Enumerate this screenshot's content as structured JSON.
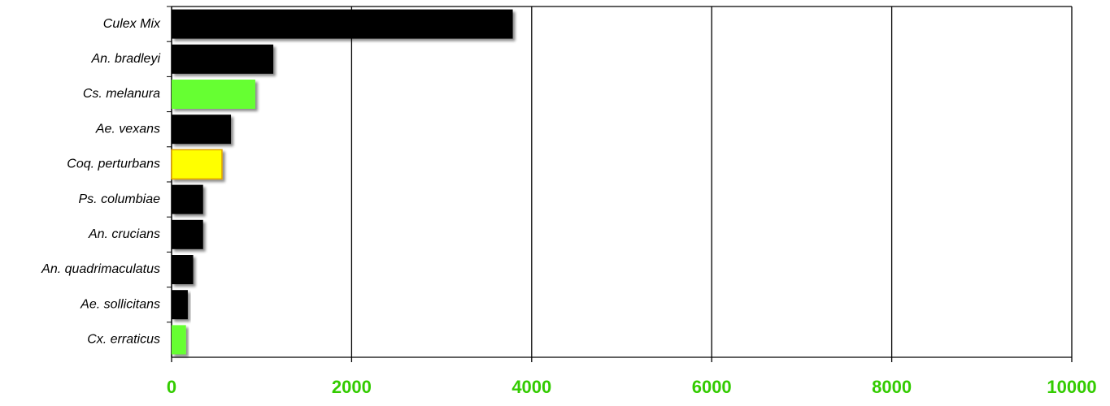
{
  "chart_data": {
    "type": "hbar",
    "categories": [
      "Culex Mix",
      "An. bradleyi",
      "Cs. melanura",
      "Ae. vexans",
      "Coq. perturbans",
      "Ps. columbiae",
      "An. crucians",
      "An. quadrimaculatus",
      "Ae. sollicitans",
      "Cx. erraticus"
    ],
    "values": [
      3790,
      1130,
      930,
      660,
      560,
      350,
      350,
      240,
      180,
      160
    ],
    "colors": [
      "#000000",
      "#000000",
      "#66ff33",
      "#000000",
      "#ffff00",
      "#000000",
      "#000000",
      "#000000",
      "#000000",
      "#66ff33"
    ],
    "xlim": [
      0,
      10000
    ],
    "xticks": [
      0,
      2000,
      4000,
      6000,
      8000,
      10000
    ],
    "grid": true,
    "tick_color": "#33cc00"
  }
}
